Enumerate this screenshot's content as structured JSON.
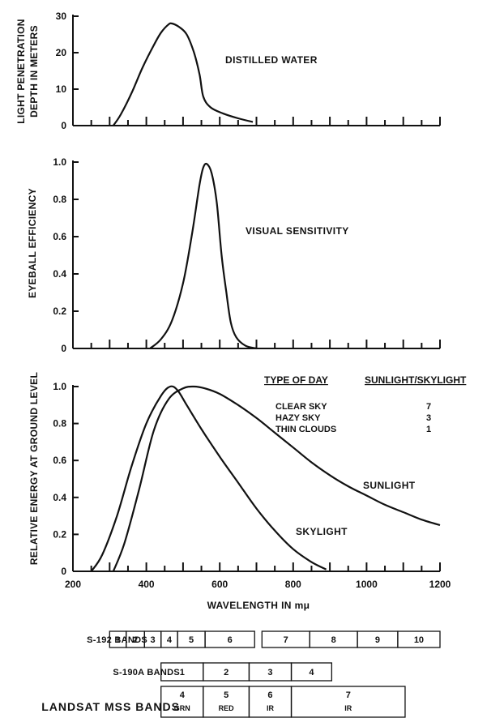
{
  "chart_data": [
    {
      "type": "line",
      "ylabel": [
        "LIGHT PENETRATION",
        "DEPTH IN METERS"
      ],
      "yticks": [
        "30",
        "20",
        "10",
        "0"
      ],
      "ylim": [
        0,
        30
      ],
      "xlim": [
        200,
        1200
      ],
      "series": [
        {
          "annotation": "DISTILLED WATER",
          "points": [
            [
              310,
              0
            ],
            [
              330,
              3
            ],
            [
              360,
              9
            ],
            [
              390,
              16
            ],
            [
              420,
              22
            ],
            [
              440,
              25.5
            ],
            [
              460,
              27.7
            ],
            [
              470,
              28
            ],
            [
              490,
              27
            ],
            [
              510,
              25
            ],
            [
              530,
              20
            ],
            [
              545,
              14
            ],
            [
              555,
              8
            ],
            [
              575,
              5
            ],
            [
              610,
              3.3
            ],
            [
              650,
              2
            ],
            [
              690,
              1
            ]
          ]
        }
      ]
    },
    {
      "type": "line",
      "ylabel": [
        "EYEBALL EFFICIENCY"
      ],
      "yticks": [
        "1.0",
        "0.8",
        "0.6",
        "0.4",
        "0.2",
        "0"
      ],
      "ylim": [
        0,
        1.0
      ],
      "xlim": [
        200,
        1200
      ],
      "series": [
        {
          "annotation": "VISUAL SENSITIVITY",
          "points": [
            [
              410,
              0
            ],
            [
              440,
              0.05
            ],
            [
              470,
              0.15
            ],
            [
              500,
              0.35
            ],
            [
              525,
              0.62
            ],
            [
              545,
              0.88
            ],
            [
              555,
              0.97
            ],
            [
              565,
              0.99
            ],
            [
              578,
              0.94
            ],
            [
              592,
              0.78
            ],
            [
              605,
              0.5
            ],
            [
              618,
              0.3
            ],
            [
              630,
              0.14
            ],
            [
              645,
              0.06
            ],
            [
              670,
              0.015
            ],
            [
              700,
              0
            ]
          ]
        }
      ]
    },
    {
      "type": "line",
      "ylabel": [
        "RELATIVE ENERGY AT GROUND LEVEL"
      ],
      "yticks": [
        "1.0",
        "0.8",
        "0.6",
        "0.4",
        "0.2",
        "0"
      ],
      "ylim": [
        0,
        1.0
      ],
      "xlim": [
        200,
        1200
      ],
      "xticks": [
        "200",
        "400",
        "600",
        "800",
        "1000",
        "1200"
      ],
      "xlabel": "WAVELENGTH IN mμ",
      "series": [
        {
          "name": "SKYLIGHT",
          "points": [
            [
              250,
              0
            ],
            [
              280,
              0.09
            ],
            [
              320,
              0.3
            ],
            [
              360,
              0.57
            ],
            [
              400,
              0.8
            ],
            [
              440,
              0.95
            ],
            [
              465,
              1.0
            ],
            [
              485,
              0.98
            ],
            [
              510,
              0.9
            ],
            [
              550,
              0.77
            ],
            [
              600,
              0.62
            ],
            [
              650,
              0.48
            ],
            [
              700,
              0.34
            ],
            [
              750,
              0.22
            ],
            [
              800,
              0.12
            ],
            [
              850,
              0.05
            ],
            [
              890,
              0.01
            ]
          ]
        },
        {
          "name": "SUNLIGHT",
          "points": [
            [
              310,
              0
            ],
            [
              340,
              0.15
            ],
            [
              380,
              0.44
            ],
            [
              420,
              0.76
            ],
            [
              460,
              0.93
            ],
            [
              500,
              0.99
            ],
            [
              530,
              1.0
            ],
            [
              560,
              0.99
            ],
            [
              600,
              0.96
            ],
            [
              650,
              0.9
            ],
            [
              700,
              0.83
            ],
            [
              750,
              0.75
            ],
            [
              800,
              0.67
            ],
            [
              850,
              0.59
            ],
            [
              900,
              0.52
            ],
            [
              950,
              0.46
            ],
            [
              1000,
              0.41
            ],
            [
              1050,
              0.36
            ],
            [
              1100,
              0.32
            ],
            [
              1150,
              0.28
            ],
            [
              1200,
              0.25
            ]
          ]
        }
      ],
      "table": {
        "headers": [
          "TYPE OF DAY",
          "SUNLIGHT/SKYLIGHT"
        ],
        "rows": [
          [
            "CLEAR SKY",
            "7"
          ],
          [
            "HAZY SKY",
            "3"
          ],
          [
            "THIN CLOUDS",
            "1"
          ]
        ]
      }
    }
  ],
  "bands": {
    "s192": {
      "title": "S-192 BANDS",
      "cells": [
        {
          "label": "1",
          "from": 300,
          "to": 345
        },
        {
          "label": "2",
          "from": 345,
          "to": 395
        },
        {
          "label": "3",
          "from": 395,
          "to": 440
        },
        {
          "label": "4",
          "from": 440,
          "to": 485
        },
        {
          "label": "5",
          "from": 485,
          "to": 560
        },
        {
          "label": "6",
          "from": 560,
          "to": 695
        },
        {
          "label": "7",
          "from": 715,
          "to": 845
        },
        {
          "label": "8",
          "from": 845,
          "to": 975
        },
        {
          "label": "9",
          "from": 975,
          "to": 1085
        },
        {
          "label": "10",
          "from": 1085,
          "to": 1200
        }
      ]
    },
    "s190a": {
      "title": "S-190A BANDS",
      "cells": [
        {
          "label": "1",
          "from": 440,
          "to": 555
        },
        {
          "label": "2",
          "from": 555,
          "to": 680
        },
        {
          "label": "3",
          "from": 680,
          "to": 795
        },
        {
          "label": "4",
          "from": 795,
          "to": 905
        }
      ]
    },
    "landsat": {
      "title": "LANDSAT MSS BANDS",
      "cells": [
        {
          "label": "4",
          "sub": "GRN",
          "from": 440,
          "to": 555
        },
        {
          "label": "5",
          "sub": "RED",
          "from": 555,
          "to": 680
        },
        {
          "label": "6",
          "sub": "IR",
          "from": 680,
          "to": 795
        },
        {
          "label": "7",
          "sub": "IR",
          "from": 795,
          "to": 1105
        }
      ]
    }
  }
}
